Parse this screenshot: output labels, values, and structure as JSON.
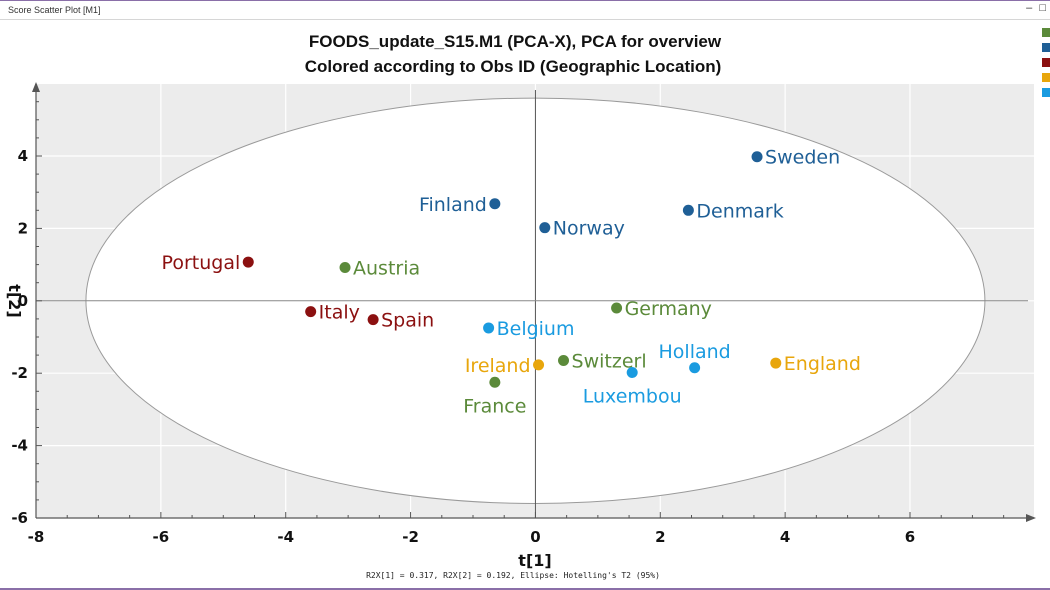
{
  "window": {
    "title": "Score Scatter Plot [M1]",
    "minimize_glyph": "–",
    "maximize_glyph": "□"
  },
  "legend_colors": [
    "#5b8a3a",
    "#1f5f96",
    "#8b1010",
    "#e8a60c",
    "#1a9be0"
  ],
  "chart_data": {
    "type": "scatter",
    "title": "FOODS_update_S15.M1 (PCA-X), PCA for overview",
    "subtitle": "Colored according to Obs ID (Geographic Location)",
    "xlabel": "t[1]",
    "ylabel": "t[2]",
    "xlim": [
      -8,
      8
    ],
    "ylim": [
      -6,
      6
    ],
    "xticks": [
      -8,
      -6,
      -4,
      -2,
      0,
      2,
      4,
      6
    ],
    "yticks": [
      -6,
      -4,
      -2,
      0,
      2,
      4
    ],
    "footnote": "R2X[1] = 0.317, R2X[2] = 0.192, Ellipse: Hotelling's T2 (95%)",
    "ellipse": {
      "center": [
        0,
        0
      ],
      "rx": 7.2,
      "ry": 5.6
    },
    "groups": {
      "green": "#5b8a3a",
      "darkblue": "#1f5f96",
      "darkred": "#8b1010",
      "yellow": "#e8a60c",
      "lightblue": "#1a9be0"
    },
    "points": [
      {
        "label": "Sweden",
        "x": 3.55,
        "y": 3.98,
        "group": "darkblue",
        "pos": "right"
      },
      {
        "label": "Finland",
        "x": -0.65,
        "y": 2.68,
        "group": "darkblue",
        "pos": "left"
      },
      {
        "label": "Norway",
        "x": 0.15,
        "y": 2.02,
        "group": "darkblue",
        "pos": "right"
      },
      {
        "label": "Denmark",
        "x": 2.45,
        "y": 2.5,
        "group": "darkblue",
        "pos": "right"
      },
      {
        "label": "Portugal",
        "x": -4.6,
        "y": 1.07,
        "group": "darkred",
        "pos": "left"
      },
      {
        "label": "Italy",
        "x": -3.6,
        "y": -0.3,
        "group": "darkred",
        "pos": "right"
      },
      {
        "label": "Spain",
        "x": -2.6,
        "y": -0.52,
        "group": "darkred",
        "pos": "right"
      },
      {
        "label": "Austria",
        "x": -3.05,
        "y": 0.92,
        "group": "green",
        "pos": "right"
      },
      {
        "label": "Germany",
        "x": 1.3,
        "y": -0.2,
        "group": "green",
        "pos": "right"
      },
      {
        "label": "Switzerl",
        "x": 0.45,
        "y": -1.65,
        "group": "green",
        "pos": "right"
      },
      {
        "label": "France",
        "x": -0.65,
        "y": -2.25,
        "group": "green",
        "pos": "below"
      },
      {
        "label": "Belgium",
        "x": -0.75,
        "y": -0.75,
        "group": "lightblue",
        "pos": "right"
      },
      {
        "label": "Holland",
        "x": 2.55,
        "y": -1.85,
        "group": "lightblue",
        "pos": "above"
      },
      {
        "label": "Luxembou",
        "x": 1.55,
        "y": -1.98,
        "group": "lightblue",
        "pos": "below"
      },
      {
        "label": "Ireland",
        "x": 0.05,
        "y": -1.77,
        "group": "yellow",
        "pos": "left"
      },
      {
        "label": "England",
        "x": 3.85,
        "y": -1.72,
        "group": "yellow",
        "pos": "right"
      }
    ]
  }
}
